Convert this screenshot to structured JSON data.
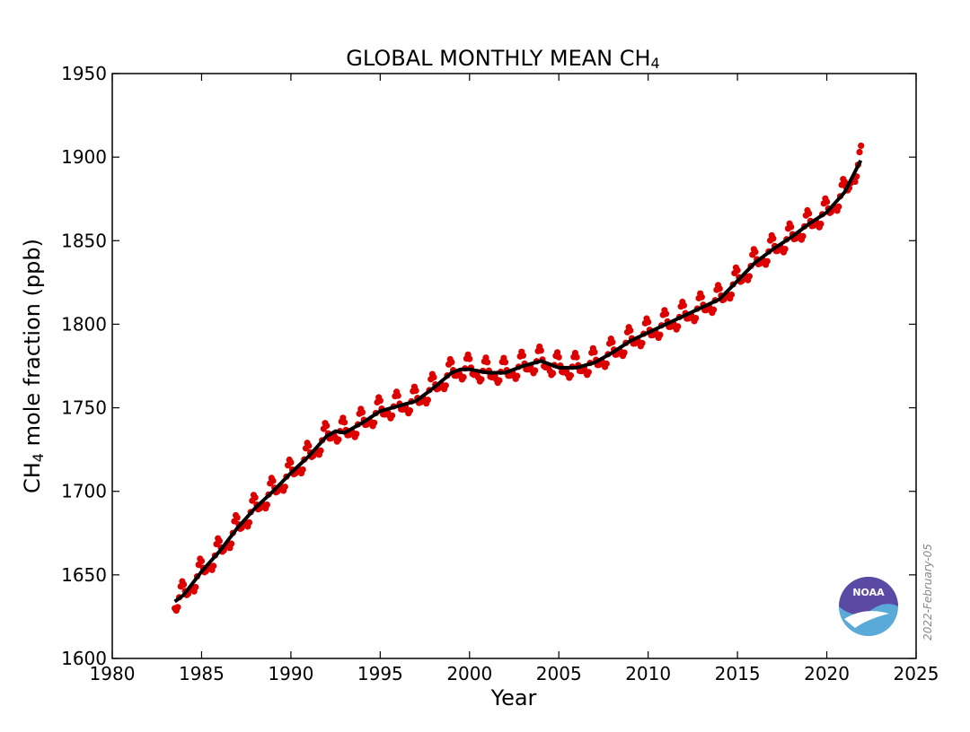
{
  "chart_data": {
    "type": "scatter",
    "title": "GLOBAL MONTHLY MEAN CH",
    "title_sub": "4",
    "xlabel": "Year",
    "ylabel_main": "CH",
    "ylabel_sub": "4",
    "ylabel_rest": " mole fraction (ppb)",
    "xlim": [
      1980,
      2025
    ],
    "ylim": [
      1600,
      1950
    ],
    "xticks": [
      "1980",
      "1985",
      "1990",
      "1995",
      "2000",
      "2005",
      "2010",
      "2015",
      "2020",
      "2025"
    ],
    "yticks": [
      "1600",
      "1650",
      "1700",
      "1750",
      "1800",
      "1850",
      "1900",
      "1950"
    ],
    "grid": false,
    "colors": {
      "monthly": "#dd0000",
      "trend": "#000000"
    },
    "trend": {
      "x": [
        1983.5,
        1984,
        1985,
        1986,
        1987,
        1988,
        1989,
        1990,
        1991,
        1992,
        1992.5,
        1993,
        1994,
        1995,
        1996,
        1997,
        1998,
        1999,
        1999.5,
        2000,
        2001,
        2002,
        2003,
        2004,
        2005,
        2006,
        2007,
        2008,
        2009,
        2010,
        2011,
        2012,
        2013,
        2014,
        2015,
        2016,
        2017,
        2018,
        2019,
        2020,
        2021,
        2021.9
      ],
      "y": [
        1634,
        1638,
        1652,
        1664,
        1678,
        1690,
        1700,
        1711,
        1721,
        1733,
        1736,
        1735,
        1741,
        1748,
        1751,
        1754,
        1762,
        1771,
        1773,
        1773,
        1771,
        1771,
        1775,
        1778,
        1774,
        1774,
        1777,
        1783,
        1790,
        1795,
        1800,
        1805,
        1810,
        1815,
        1826,
        1837,
        1845,
        1852,
        1860,
        1867,
        1879,
        1898
      ]
    },
    "seasonal_amplitude": 9,
    "annotation_date": "2022-February-05",
    "logo_text": "NOAA"
  }
}
